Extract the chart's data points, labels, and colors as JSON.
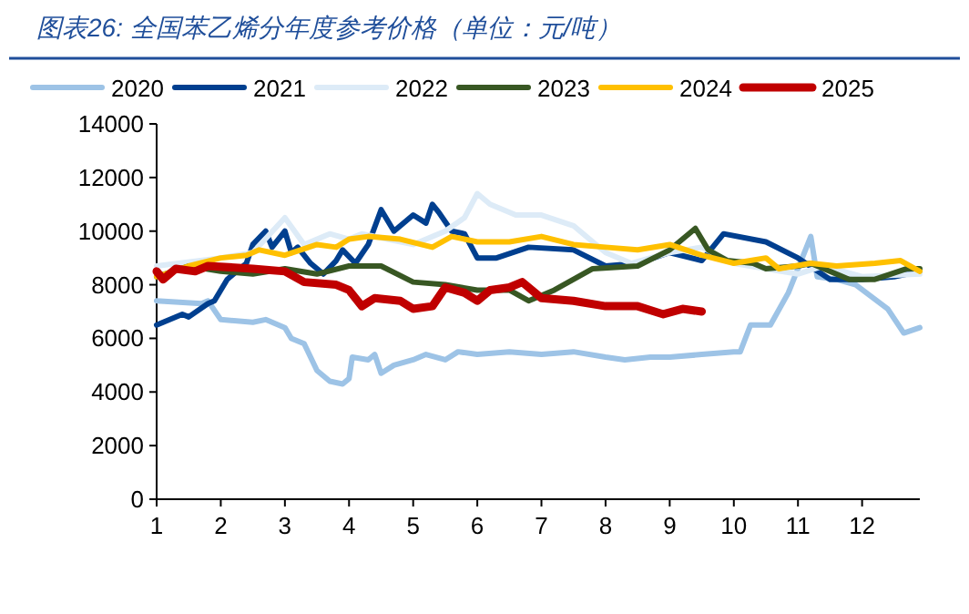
{
  "chart_data": {
    "type": "line",
    "title": "图表26:  全国苯乙烯分年度参考价格（单位：元/吨）",
    "legend": "top",
    "xlim": [
      1,
      12.9
    ],
    "xticks": [
      1,
      2,
      3,
      4,
      5,
      6,
      7,
      8,
      9,
      10,
      11,
      12
    ],
    "ylim": [
      0,
      14000
    ],
    "yticks": [
      0,
      2000,
      4000,
      6000,
      8000,
      10000,
      12000,
      14000
    ],
    "series": [
      {
        "name": "2020",
        "color": "#9dc3e6",
        "x": [
          1,
          1.7,
          1.8,
          2.0,
          2.5,
          2.7,
          3.0,
          3.1,
          3.3,
          3.5,
          3.7,
          3.9,
          4.0,
          4.05,
          4.3,
          4.4,
          4.5,
          4.7,
          5.0,
          5.2,
          5.5,
          5.7,
          6.0,
          6.5,
          7.0,
          7.5,
          8.0,
          8.3,
          8.7,
          9.0,
          9.5,
          10.0,
          10.1,
          10.26,
          10.57,
          10.85,
          11.2,
          11.3,
          11.6,
          11.9,
          12.4,
          12.65,
          12.9
        ],
        "values": [
          7400,
          7300,
          7400,
          6700,
          6600,
          6700,
          6400,
          6000,
          5800,
          4800,
          4400,
          4300,
          4500,
          5300,
          5200,
          5400,
          4700,
          5000,
          5200,
          5400,
          5200,
          5500,
          5400,
          5500,
          5400,
          5500,
          5300,
          5200,
          5300,
          5300,
          5400,
          5500,
          5500,
          6500,
          6500,
          7700,
          9800,
          8300,
          8200,
          8000,
          7100,
          6200,
          6400
        ]
      },
      {
        "name": "2021",
        "color": "#003f8f",
        "x": [
          1,
          1.4,
          1.5,
          1.8,
          1.9,
          2.1,
          2.4,
          2.5,
          2.7,
          2.8,
          3.0,
          3.1,
          3.2,
          3.4,
          3.6,
          3.8,
          3.9,
          4.1,
          4.3,
          4.5,
          4.7,
          5.0,
          5.2,
          5.3,
          5.4,
          5.6,
          5.8,
          6.0,
          6.3,
          6.8,
          7.5,
          8.0,
          8.5,
          9.0,
          9.5,
          9.84,
          10.5,
          11.0,
          11.5,
          12.0,
          12.5,
          12.9
        ],
        "values": [
          6500,
          6900,
          6800,
          7300,
          7400,
          8200,
          8800,
          9500,
          10000,
          9400,
          10000,
          9200,
          9400,
          8800,
          8400,
          8900,
          9300,
          8800,
          9500,
          10800,
          10000,
          10600,
          10300,
          11000,
          10700,
          10000,
          9900,
          9000,
          9000,
          9400,
          9300,
          8700,
          8800,
          9200,
          8900,
          9900,
          9600,
          9000,
          8200,
          8200,
          8300,
          8500
        ]
      },
      {
        "name": "2022",
        "color": "#ddebf7",
        "x": [
          1,
          2,
          2.5,
          3.0,
          3.3,
          3.7,
          4.0,
          4.2,
          4.6,
          5.0,
          5.5,
          5.8,
          6.0,
          6.2,
          6.6,
          7.0,
          7.5,
          8.0,
          8.4,
          9.0,
          9.5,
          10.0,
          10.5,
          11.0,
          11.4,
          12.0,
          12.9
        ],
        "values": [
          8700,
          9000,
          9200,
          10500,
          9500,
          9900,
          9700,
          9900,
          9700,
          9500,
          10000,
          10500,
          11400,
          11000,
          10600,
          10600,
          10200,
          9200,
          8800,
          9200,
          9400,
          8800,
          8600,
          8400,
          8700,
          8300,
          8400
        ]
      },
      {
        "name": "2023",
        "color": "#385723",
        "x": [
          1,
          1.5,
          2,
          2.5,
          3,
          3.5,
          4,
          4.5,
          5.0,
          5.5,
          6.0,
          6.5,
          6.8,
          7.2,
          7.8,
          8.5,
          9.0,
          9.4,
          9.6,
          9.9,
          10.3,
          10.5,
          11,
          11.2,
          11.8,
          12.2,
          12.7,
          12.9
        ],
        "values": [
          8300,
          8700,
          8500,
          8400,
          8600,
          8400,
          8700,
          8700,
          8100,
          8000,
          7800,
          7800,
          7400,
          7800,
          8600,
          8700,
          9300,
          10100,
          9300,
          8900,
          8800,
          8600,
          8700,
          8800,
          8200,
          8200,
          8600,
          8600
        ]
      },
      {
        "name": "2024",
        "color": "#ffc000",
        "x": [
          1,
          1.5,
          2,
          2.4,
          2.6,
          3.0,
          3.5,
          3.8,
          4.0,
          4.3,
          4.8,
          5.3,
          5.6,
          6.0,
          6.5,
          7.0,
          7.5,
          8.0,
          8.5,
          9.0,
          9.5,
          10.0,
          10.5,
          10.7,
          11.2,
          11.6,
          12.2,
          12.6,
          12.9
        ],
        "values": [
          8300,
          8700,
          9000,
          9100,
          9300,
          9100,
          9500,
          9400,
          9700,
          9800,
          9700,
          9400,
          9800,
          9600,
          9600,
          9800,
          9500,
          9400,
          9300,
          9500,
          9100,
          8800,
          9000,
          8600,
          8800,
          8700,
          8800,
          8900,
          8500
        ]
      },
      {
        "name": "2025",
        "color": "#c00000",
        "x": [
          1,
          1.1,
          1.3,
          1.6,
          1.8,
          2.5,
          3.0,
          3.3,
          3.8,
          4.0,
          4.2,
          4.4,
          4.8,
          5.0,
          5.3,
          5.5,
          5.8,
          6.0,
          6.2,
          6.5,
          6.7,
          7.0,
          7.5,
          8.0,
          8.5,
          8.9,
          9.2,
          9.5
        ],
        "values": [
          8500,
          8200,
          8600,
          8500,
          8700,
          8600,
          8500,
          8100,
          8000,
          7800,
          7200,
          7500,
          7400,
          7100,
          7200,
          7900,
          7700,
          7400,
          7800,
          7900,
          8100,
          7500,
          7400,
          7200,
          7200,
          6900,
          7100,
          7000
        ]
      }
    ]
  }
}
